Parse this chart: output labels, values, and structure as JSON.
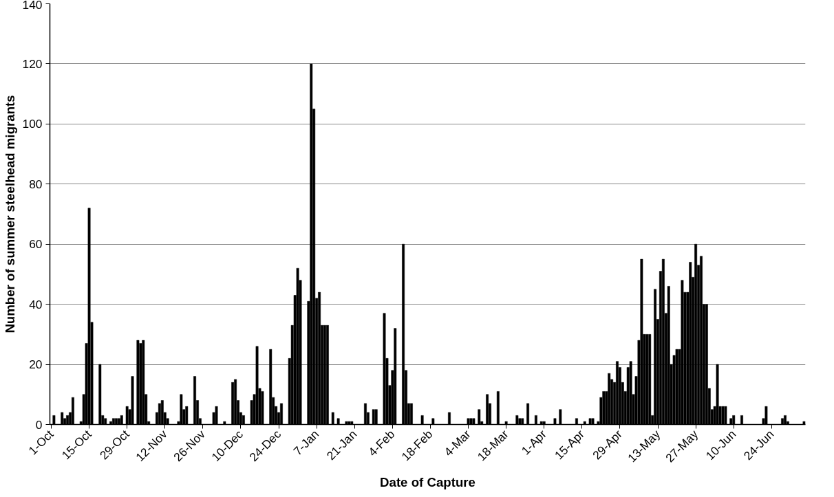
{
  "chart_data": {
    "type": "bar",
    "xlabel": "Date of Capture",
    "ylabel": "Number of summer steelhead migrants",
    "categories": [
      "1-Oct",
      null,
      null,
      null,
      null,
      null,
      null,
      null,
      null,
      null,
      null,
      null,
      null,
      null,
      "15-Oct",
      null,
      null,
      null,
      null,
      null,
      null,
      null,
      null,
      null,
      null,
      null,
      null,
      null,
      "29-Oct",
      null,
      null,
      null,
      null,
      null,
      null,
      null,
      null,
      null,
      null,
      null,
      null,
      null,
      "12-Nov",
      null,
      null,
      null,
      null,
      null,
      null,
      null,
      null,
      null,
      null,
      null,
      null,
      null,
      "26-Nov",
      null,
      null,
      null,
      null,
      null,
      null,
      null,
      null,
      null,
      null,
      null,
      null,
      null,
      "10-Dec",
      null,
      null,
      null,
      null,
      null,
      null,
      null,
      null,
      null,
      null,
      null,
      null,
      null,
      "24-Dec",
      null,
      null,
      null,
      null,
      null,
      null,
      null,
      null,
      null,
      null,
      null,
      null,
      null,
      "7-Jan",
      null,
      null,
      null,
      null,
      null,
      null,
      null,
      null,
      null,
      null,
      null,
      null,
      null,
      "21-Jan",
      null,
      null,
      null,
      null,
      null,
      null,
      null,
      null,
      null,
      null,
      null,
      null,
      null,
      "4-Feb",
      null,
      null,
      null,
      null,
      null,
      null,
      null,
      null,
      null,
      null,
      null,
      null,
      null,
      "18-Feb",
      null,
      null,
      null,
      null,
      null,
      null,
      null,
      null,
      null,
      null,
      null,
      null,
      null,
      "4-Mar",
      null,
      null,
      null,
      null,
      null,
      null,
      null,
      null,
      null,
      null,
      null,
      null,
      null,
      "18-Mar",
      null,
      null,
      null,
      null,
      null,
      null,
      null,
      null,
      null,
      null,
      null,
      null,
      null,
      "1-Apr",
      null,
      null,
      null,
      null,
      null,
      null,
      null,
      null,
      null,
      null,
      null,
      null,
      null,
      "15-Apr",
      null,
      null,
      null,
      null,
      null,
      null,
      null,
      null,
      null,
      null,
      null,
      null,
      null,
      "29-Apr",
      null,
      null,
      null,
      null,
      null,
      null,
      null,
      null,
      null,
      null,
      null,
      null,
      null,
      "13-May",
      null,
      null,
      null,
      null,
      null,
      null,
      null,
      null,
      null,
      null,
      null,
      null,
      null,
      "27-May",
      null,
      null,
      null,
      null,
      null,
      null,
      null,
      null,
      null,
      null,
      null,
      null,
      null,
      "10-Jun",
      null,
      null,
      null,
      null,
      null,
      null,
      null,
      null,
      null,
      null,
      null,
      null,
      null,
      "24-Jun",
      null,
      null,
      null,
      null,
      null,
      null,
      null,
      null,
      null,
      null,
      null,
      null
    ],
    "values": [
      null,
      3,
      null,
      null,
      4,
      2,
      3,
      4,
      9,
      null,
      null,
      1,
      10,
      27,
      72,
      34,
      null,
      null,
      20,
      3,
      2,
      null,
      1,
      2,
      2,
      2,
      3,
      null,
      6,
      5,
      16,
      null,
      28,
      27,
      28,
      10,
      1,
      null,
      null,
      4,
      7,
      8,
      4,
      2,
      null,
      null,
      null,
      1,
      10,
      5,
      6,
      null,
      null,
      16,
      8,
      2,
      null,
      null,
      null,
      null,
      4,
      6,
      null,
      null,
      1,
      null,
      null,
      14,
      15,
      8,
      4,
      3,
      null,
      null,
      8,
      10,
      26,
      12,
      11,
      null,
      null,
      25,
      9,
      6,
      4,
      7,
      null,
      null,
      22,
      33,
      43,
      52,
      48,
      null,
      null,
      41,
      120,
      105,
      42,
      44,
      33,
      33,
      33,
      null,
      4,
      null,
      2,
      null,
      null,
      1,
      1,
      1,
      null,
      null,
      null,
      null,
      7,
      4,
      null,
      5,
      5,
      null,
      null,
      37,
      22,
      13,
      18,
      32,
      null,
      null,
      60,
      18,
      7,
      7,
      null,
      null,
      null,
      3,
      null,
      null,
      null,
      2,
      null,
      null,
      null,
      null,
      null,
      4,
      null,
      null,
      null,
      null,
      null,
      null,
      2,
      2,
      2,
      null,
      5,
      1,
      null,
      10,
      7,
      null,
      null,
      11,
      null,
      null,
      1,
      null,
      null,
      null,
      3,
      2,
      2,
      null,
      7,
      null,
      null,
      3,
      null,
      1,
      1,
      null,
      null,
      null,
      2,
      null,
      5,
      null,
      null,
      null,
      null,
      null,
      2,
      null,
      null,
      1,
      null,
      2,
      2,
      null,
      1,
      9,
      11,
      11,
      17,
      15,
      14,
      21,
      19,
      14,
      11,
      19,
      21,
      10,
      16,
      28,
      55,
      30,
      30,
      30,
      3,
      45,
      35,
      51,
      55,
      37,
      46,
      20,
      23,
      25,
      25,
      48,
      44,
      44,
      54,
      49,
      60,
      53,
      56,
      40,
      40,
      12,
      5,
      6,
      20,
      6,
      6,
      6,
      null,
      2,
      3,
      null,
      null,
      3,
      null,
      null,
      null,
      null,
      null,
      null,
      null,
      2,
      6,
      null,
      null,
      null,
      null,
      null,
      2,
      3,
      1,
      null,
      null,
      null,
      null,
      null,
      1
    ],
    "color": "#000000",
    "ylim": [
      0,
      140
    ],
    "yticks": [
      0,
      20,
      40,
      60,
      80,
      100,
      120,
      140
    ],
    "grid": "y"
  }
}
